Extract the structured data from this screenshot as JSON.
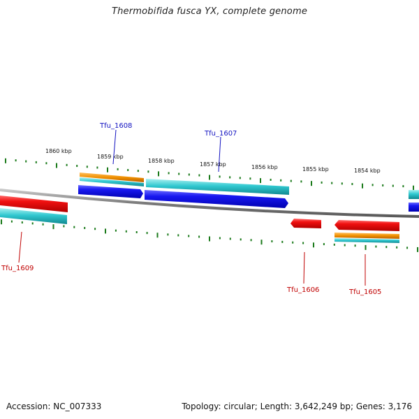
{
  "title": "Thermobifida fusca YX, complete genome",
  "footer": {
    "accession": "Accession: NC_007333",
    "summary": "Topology: circular; Length: 3,642,249 bp; Genes: 3,176"
  },
  "colors": {
    "background": "#ffffff",
    "backbone": "#8a8a8a",
    "tick": "#1a7a1a",
    "forward_cds": "#1010e0",
    "reverse_cds": "#e00000",
    "forward_label": "#1010c0",
    "reverse_label": "#c00000",
    "feature_teal": "#20c0c8",
    "feature_orange": "#f09000"
  },
  "scale_labels": [
    "1860 kbp",
    "1859 kbp",
    "1858 kbp",
    "1857 kbp",
    "1856 kbp",
    "1855 kbp",
    "1854 kbp"
  ],
  "genes": [
    {
      "name": "Tfu_1608",
      "strand": "forward"
    },
    {
      "name": "Tfu_1607",
      "strand": "forward"
    },
    {
      "name": "Tfu_1609",
      "strand": "reverse"
    },
    {
      "name": "Tfu_1606",
      "strand": "reverse"
    },
    {
      "name": "Tfu_1605",
      "strand": "reverse"
    }
  ]
}
